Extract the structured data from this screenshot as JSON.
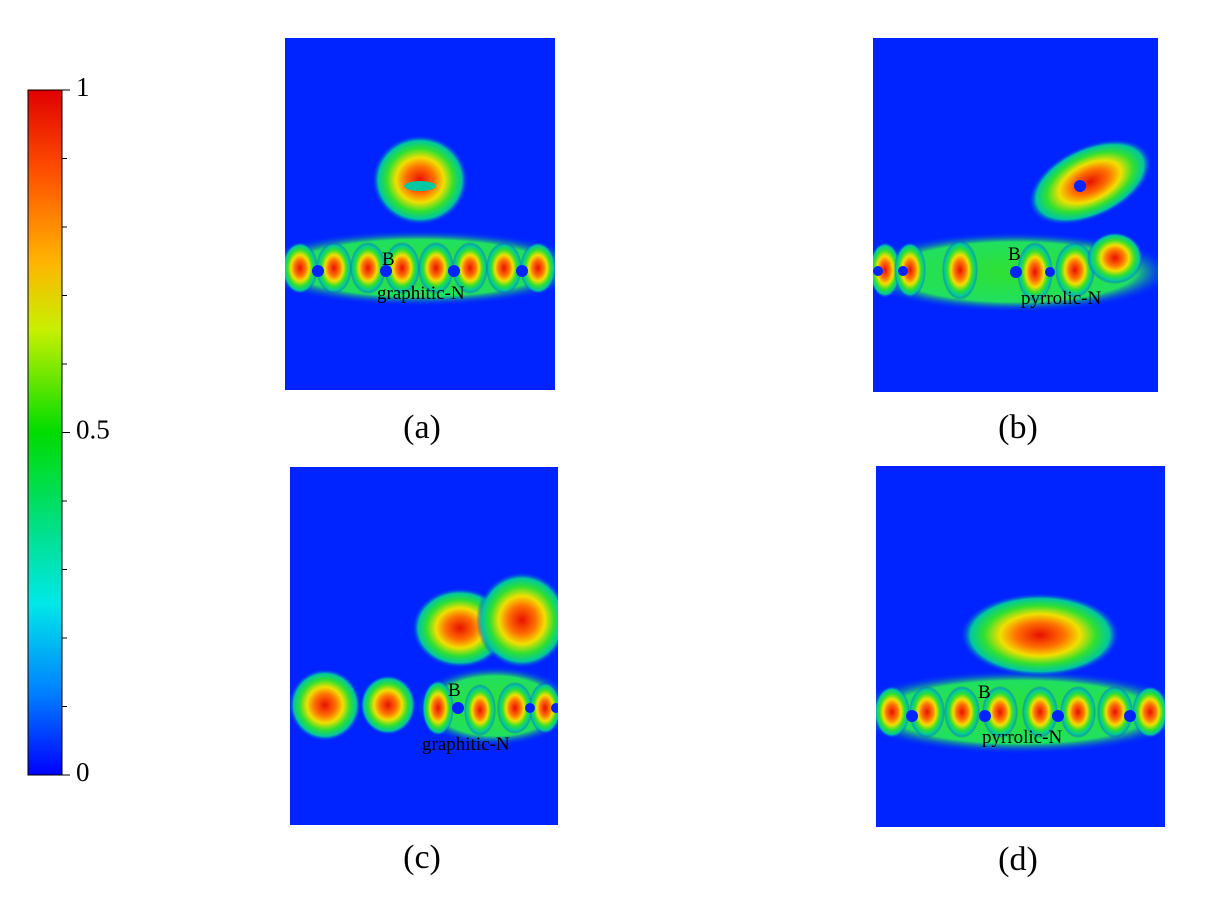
{
  "colorbar": {
    "lim": [
      0,
      1
    ],
    "ticks": [
      0,
      0.5,
      1
    ],
    "minor_ticks": [
      0.1,
      0.2,
      0.3,
      0.4,
      0.6,
      0.7,
      0.8,
      0.9
    ]
  },
  "panels": [
    {
      "caption": "(a)",
      "labels": [
        "B",
        "graphitic-N"
      ]
    },
    {
      "caption": "(b)",
      "labels": [
        "B",
        "pyrrolic-N"
      ]
    },
    {
      "caption": "(c)",
      "labels": [
        "B",
        "graphitic-N"
      ]
    },
    {
      "caption": "(d)",
      "labels": [
        "B",
        "pyrrolic-N"
      ]
    }
  ]
}
